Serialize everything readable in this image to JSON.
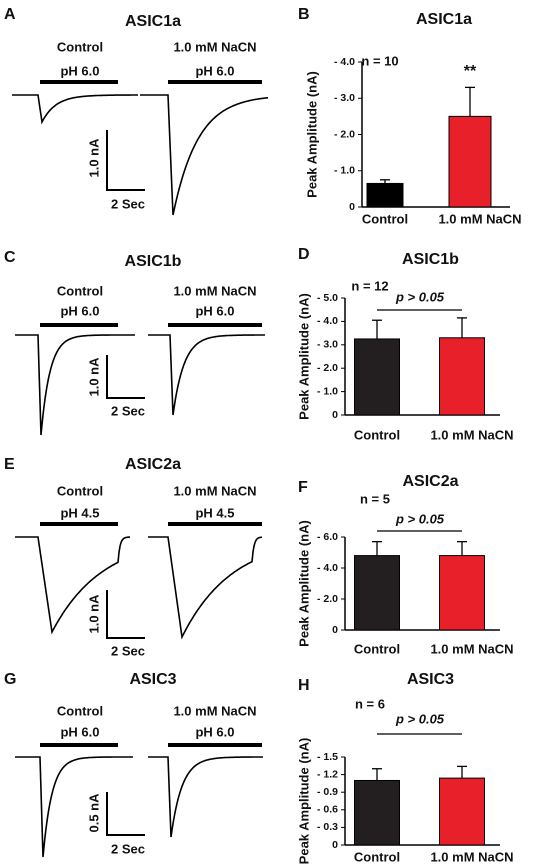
{
  "trace_panels": [
    {
      "label": "A",
      "title": "ASIC1a",
      "conditions": [
        "Control",
        "1.0 mM NaCN"
      ],
      "ph": [
        "pH 6.0",
        "pH 6.0"
      ],
      "scale": [
        "1.0 nA",
        "2 Sec"
      ]
    },
    {
      "label": "C",
      "title": "ASIC1b",
      "conditions": [
        "Control",
        "1.0 mM NaCN"
      ],
      "ph": [
        "pH 6.0",
        "pH 6.0"
      ],
      "scale": [
        "1.0 nA",
        "2 Sec"
      ]
    },
    {
      "label": "E",
      "title": "ASIC2a",
      "conditions": [
        "Control",
        "1.0 mM NaCN"
      ],
      "ph": [
        "pH 4.5",
        "pH 4.5"
      ],
      "scale": [
        "1.0 nA",
        "2 Sec"
      ]
    },
    {
      "label": "G",
      "title": "ASIC3",
      "conditions": [
        "Control",
        "1.0 mM NaCN"
      ],
      "ph": [
        "pH 6.0",
        "pH 6.0"
      ],
      "scale": [
        "0.5 nA",
        "2 Sec"
      ]
    }
  ],
  "chart_data": [
    {
      "type": "bar",
      "panel": "B",
      "title": "ASIC1a",
      "ylabel": "Peak Amplitude (nA)",
      "categories": [
        "Control",
        "1.0 mM NaCN"
      ],
      "values": [
        -0.65,
        -2.5
      ],
      "errors": [
        0.1,
        0.8
      ],
      "colors": [
        "#000000",
        "#e8202a"
      ],
      "ylim": [
        0,
        -4
      ],
      "yticks": [
        0,
        {
          "value": -1,
          "label": "- 1.0"
        },
        {
          "value": -2,
          "label": "- 2.0"
        },
        {
          "value": -3,
          "label": "- 3.0"
        },
        {
          "value": -4,
          "label": "- 4.0"
        }
      ],
      "annotations": {
        "n": "n = 10",
        "significance": "**"
      }
    },
    {
      "type": "bar",
      "panel": "D",
      "title": "ASIC1b",
      "ylabel": "Peak Amplitude (nA)",
      "categories": [
        "Control",
        "1.0 mM NaCN"
      ],
      "values": [
        -3.25,
        -3.3
      ],
      "errors": [
        0.8,
        0.85
      ],
      "colors": [
        "#231f20",
        "#e8202a"
      ],
      "ylim": [
        0,
        -5
      ],
      "yticks": [
        0,
        {
          "value": -1,
          "label": "- 1.0"
        },
        {
          "value": -2,
          "label": "- 2.0"
        },
        {
          "value": -3,
          "label": "- 3.0"
        },
        {
          "value": -4,
          "label": "- 4.0"
        },
        {
          "value": -5,
          "label": "- 5.0"
        }
      ],
      "annotations": {
        "n": "n = 12",
        "comparison": "p > 0.05"
      }
    },
    {
      "type": "bar",
      "panel": "F",
      "title": "ASIC2a",
      "ylabel": "Peak Amplitude (nA)",
      "categories": [
        "Control",
        "1.0 mM NaCN"
      ],
      "values": [
        -4.8,
        -4.8
      ],
      "errors": [
        0.9,
        0.9
      ],
      "colors": [
        "#231f20",
        "#e8202a"
      ],
      "ylim": [
        0,
        -6
      ],
      "yticks": [
        0,
        {
          "value": -2,
          "label": "- 2.0"
        },
        {
          "value": -4,
          "label": "- 4.0"
        },
        {
          "value": -6,
          "label": "- 6.0"
        }
      ],
      "annotations": {
        "n": "n = 5",
        "comparison": "p > 0.05"
      }
    },
    {
      "type": "bar",
      "panel": "H",
      "title": "ASIC3",
      "ylabel": "Peak Amplitude (nA)",
      "categories": [
        "Control",
        "1.0 mM NaCN"
      ],
      "values": [
        -1.1,
        -1.14
      ],
      "errors": [
        0.2,
        0.2
      ],
      "colors": [
        "#231f20",
        "#e8202a"
      ],
      "ylim": [
        0,
        -1.5
      ],
      "yticks": [
        0,
        {
          "value": -0.3,
          "label": "- 0.3"
        },
        {
          "value": -0.6,
          "label": "- 0.6"
        },
        {
          "value": -0.9,
          "label": "- 0.9"
        },
        {
          "value": -1.2,
          "label": "- 1.2"
        },
        {
          "value": -1.5,
          "label": "- 1.5"
        }
      ],
      "annotations": {
        "n": "n = 6",
        "comparison": "p > 0.05"
      }
    }
  ]
}
